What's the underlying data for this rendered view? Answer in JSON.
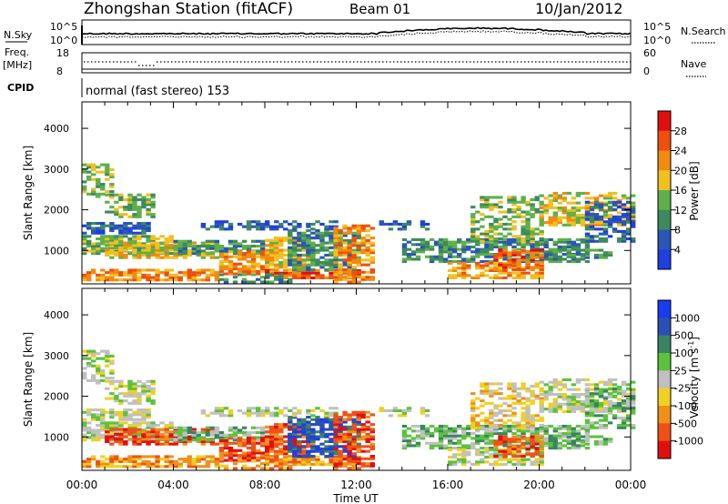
{
  "header": {
    "title": "Zhongshan Station (fitACF)",
    "beam": "Beam 01",
    "date": "10/Jan/2012"
  },
  "strip": {
    "nsky_label": "N.Sky",
    "nsky_ticks": [
      "10^5",
      "10^0"
    ],
    "nsearch_label": "N.Search",
    "nsearch_ticks": [
      "10^5",
      "10^0"
    ],
    "freq_label": "Freq.",
    "freq_unit": "[MHz]",
    "freq_ticks": [
      "18",
      "8"
    ],
    "nave_label": "Nave",
    "nave_ticks": [
      "60",
      "0"
    ],
    "cpid_label": "CPID",
    "cpid_value": "normal (fast stereo) 153"
  },
  "axes": {
    "ylabel": "Slant Range [km]",
    "xlabel": "Time UT"
  },
  "colors": {
    "power": [
      "#1f3fe0",
      "#2a56b6",
      "#3e8a5f",
      "#5fb04a",
      "#f0c020",
      "#f08a10",
      "#ee5010",
      "#e01010"
    ],
    "velocity": [
      "#1a3cf0",
      "#2a50b4",
      "#3a8464",
      "#5cc23c",
      "#c0c0c0",
      "#f0d020",
      "#f09018",
      "#f05018",
      "#e01010"
    ]
  },
  "chart_data": [
    {
      "type": "heatmap",
      "title": "Power",
      "xlabel": "Time UT",
      "ylabel": "Slant Range [km]",
      "x_ticks": [
        "00:00",
        "04:00",
        "08:00",
        "12:00",
        "16:00",
        "20:00",
        "00:00"
      ],
      "x_range_hours": [
        0,
        24
      ],
      "y_ticks": [
        1000,
        2000,
        3000,
        4000
      ],
      "y_range_km": [
        180,
        4650
      ],
      "colorbar": {
        "label": "Power [dB]",
        "ticks": [
          "4",
          "8",
          "12",
          "16",
          "20",
          "24",
          "28"
        ],
        "range": [
          0,
          32
        ]
      }
    },
    {
      "type": "heatmap",
      "title": "Velocity",
      "xlabel": "Time UT",
      "ylabel": "Slant Range [km]",
      "x_ticks": [
        "00:00",
        "04:00",
        "08:00",
        "12:00",
        "16:00",
        "20:00",
        "00:00"
      ],
      "x_range_hours": [
        0,
        24
      ],
      "y_ticks": [
        1000,
        2000,
        3000,
        4000
      ],
      "y_range_km": [
        180,
        4650
      ],
      "colorbar": {
        "label": "Velocity [m s",
        "label_sup": "-1",
        "label_end": "]",
        "ticks": [
          "1000",
          "500",
          "100",
          "25",
          "-25",
          "-100",
          "-500",
          "-1000"
        ]
      }
    }
  ]
}
